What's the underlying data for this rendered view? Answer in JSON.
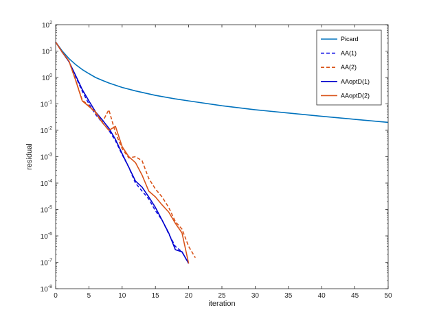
{
  "chart_data": {
    "type": "line",
    "xlabel": "iteration",
    "ylabel": "residual",
    "xlim": [
      0,
      50
    ],
    "ylim": [
      1e-08,
      100
    ],
    "yscale": "log",
    "grid": false,
    "legend_position": "top-right",
    "x_ticks": [
      {
        "value": 0,
        "label": "0"
      },
      {
        "value": 5,
        "label": "5"
      },
      {
        "value": 10,
        "label": "10"
      },
      {
        "value": 15,
        "label": "15"
      },
      {
        "value": 20,
        "label": "20"
      },
      {
        "value": 25,
        "label": "25"
      },
      {
        "value": 30,
        "label": "30"
      },
      {
        "value": 35,
        "label": "35"
      },
      {
        "value": 40,
        "label": "40"
      },
      {
        "value": 45,
        "label": "45"
      },
      {
        "value": 50,
        "label": "50"
      }
    ],
    "y_ticks": [
      {
        "value": 1e-08,
        "base": "10",
        "exp": "-8"
      },
      {
        "value": 1e-07,
        "base": "10",
        "exp": "-7"
      },
      {
        "value": 1e-06,
        "base": "10",
        "exp": "-6"
      },
      {
        "value": 1e-05,
        "base": "10",
        "exp": "-5"
      },
      {
        "value": 0.0001,
        "base": "10",
        "exp": "-4"
      },
      {
        "value": 0.001,
        "base": "10",
        "exp": "-3"
      },
      {
        "value": 0.01,
        "base": "10",
        "exp": "-2"
      },
      {
        "value": 0.1,
        "base": "10",
        "exp": "-1"
      },
      {
        "value": 1,
        "base": "10",
        "exp": "0"
      },
      {
        "value": 10,
        "base": "10",
        "exp": "1"
      },
      {
        "value": 100,
        "base": "10",
        "exp": "2"
      }
    ],
    "series": [
      {
        "name": "Picard",
        "color": "#0072BD",
        "dash": "solid",
        "x": [
          0,
          1,
          2,
          3,
          4,
          5,
          6,
          7,
          8,
          10,
          12,
          15,
          18,
          20,
          25,
          30,
          35,
          40,
          45,
          50
        ],
        "y": [
          22,
          10,
          5.2,
          3.1,
          2.0,
          1.4,
          1.0,
          0.78,
          0.62,
          0.42,
          0.31,
          0.21,
          0.155,
          0.13,
          0.085,
          0.06,
          0.045,
          0.034,
          0.026,
          0.02
        ]
      },
      {
        "name": "AA(1)",
        "color": "#1414E6",
        "dash": "dashed",
        "x": [
          0,
          1,
          2,
          3,
          4,
          5,
          6,
          7,
          8,
          9,
          10,
          11,
          12,
          13,
          14,
          15,
          16,
          17,
          18,
          19,
          20
        ],
        "y": [
          22,
          9,
          4,
          1.1,
          0.3,
          0.1,
          0.04,
          0.02,
          0.01,
          0.004,
          0.0012,
          0.0004,
          0.0001,
          5e-05,
          2.5e-05,
          9e-06,
          4e-06,
          1.2e-06,
          4e-07,
          2.5e-07,
          9e-08
        ]
      },
      {
        "name": "AA(2)",
        "color": "#D95319",
        "dash": "dashed",
        "x": [
          0,
          1,
          2,
          3,
          4,
          5,
          6,
          7,
          8,
          9,
          10,
          11,
          12,
          13,
          14,
          15,
          16,
          17,
          18,
          19,
          20,
          21
        ],
        "y": [
          22,
          9,
          4.2,
          0.8,
          0.14,
          0.085,
          0.045,
          0.02,
          0.06,
          0.008,
          0.002,
          0.0009,
          0.001,
          0.0007,
          0.00015,
          6e-05,
          3e-05,
          1.2e-05,
          3.5e-06,
          1.8e-06,
          4e-07,
          1.5e-07
        ]
      },
      {
        "name": "AAoptD(1)",
        "color": "#0000CC",
        "dash": "solid",
        "x": [
          0,
          1,
          2,
          3,
          4,
          5,
          6,
          7,
          8,
          9,
          10,
          11,
          12,
          13,
          14,
          15,
          16,
          17,
          18,
          19,
          20
        ],
        "y": [
          22,
          9,
          4,
          1.2,
          0.35,
          0.13,
          0.05,
          0.025,
          0.012,
          0.0045,
          0.0013,
          0.0004,
          0.00012,
          7e-05,
          3e-05,
          1.2e-05,
          4e-06,
          1.3e-06,
          3e-07,
          2.5e-07,
          9e-08
        ]
      },
      {
        "name": "AAoptD(2)",
        "color": "#D95319",
        "dash": "solid",
        "x": [
          0,
          1,
          2,
          3,
          4,
          5,
          6,
          7,
          8,
          9,
          10,
          11,
          12,
          13,
          14,
          15,
          16,
          17,
          18,
          19,
          20
        ],
        "y": [
          22,
          9,
          4.2,
          0.8,
          0.13,
          0.08,
          0.05,
          0.02,
          0.01,
          0.014,
          0.0024,
          0.001,
          0.0006,
          0.0002,
          5e-05,
          3e-05,
          1.5e-05,
          8e-06,
          3e-06,
          1.3e-06,
          9e-08
        ]
      }
    ]
  }
}
